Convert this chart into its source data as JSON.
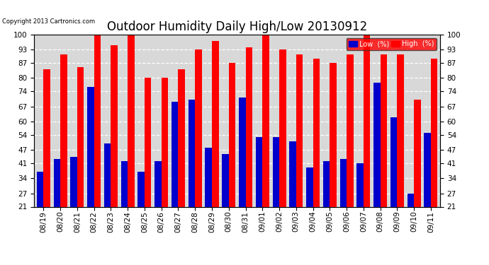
{
  "title": "Outdoor Humidity Daily High/Low 20130912",
  "copyright": "Copyright 2013 Cartronics.com",
  "dates": [
    "08/19",
    "08/20",
    "08/21",
    "08/22",
    "08/23",
    "08/24",
    "08/25",
    "08/26",
    "08/27",
    "08/28",
    "08/29",
    "08/30",
    "08/31",
    "09/01",
    "09/02",
    "09/03",
    "09/04",
    "09/05",
    "09/06",
    "09/07",
    "09/08",
    "09/09",
    "09/10",
    "09/11"
  ],
  "high": [
    84,
    91,
    85,
    100,
    95,
    100,
    80,
    80,
    84,
    93,
    97,
    87,
    94,
    100,
    93,
    91,
    89,
    87,
    91,
    100,
    91,
    91,
    70,
    89
  ],
  "low": [
    37,
    43,
    44,
    76,
    50,
    42,
    37,
    42,
    69,
    70,
    48,
    45,
    71,
    53,
    53,
    51,
    39,
    42,
    43,
    41,
    78,
    62,
    27,
    55
  ],
  "high_color": "#ff0000",
  "low_color": "#0000cc",
  "bg_color": "#ffffff",
  "plot_bg_color": "#d8d8d8",
  "grid_color": "#ffffff",
  "ylim_min": 21,
  "ylim_max": 100,
  "yticks": [
    21,
    27,
    34,
    41,
    47,
    54,
    60,
    67,
    74,
    80,
    87,
    93,
    100
  ],
  "title_fontsize": 12,
  "tick_fontsize": 7.5,
  "legend_low_label": "Low  (%)",
  "legend_high_label": "High  (%)",
  "bar_width": 0.4
}
